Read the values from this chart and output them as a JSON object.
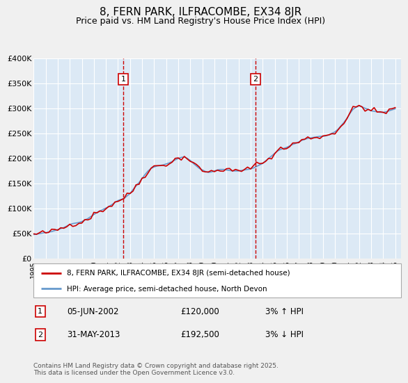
{
  "title": "8, FERN PARK, ILFRACOMBE, EX34 8JR",
  "subtitle": "Price paid vs. HM Land Registry's House Price Index (HPI)",
  "background_color": "#dce9f5",
  "plot_bg_color": "#dce9f5",
  "ylim": [
    0,
    400000
  ],
  "yticks": [
    0,
    50000,
    100000,
    150000,
    200000,
    250000,
    300000,
    350000,
    400000
  ],
  "ytick_labels": [
    "£0",
    "£50K",
    "£100K",
    "£150K",
    "£200K",
    "£250K",
    "£300K",
    "£350K",
    "£400K"
  ],
  "xlim_start": 1995.0,
  "xlim_end": 2025.5,
  "xticks": [
    1995,
    1996,
    1997,
    1998,
    1999,
    2000,
    2001,
    2002,
    2003,
    2004,
    2005,
    2006,
    2007,
    2008,
    2009,
    2010,
    2011,
    2012,
    2013,
    2014,
    2015,
    2016,
    2017,
    2018,
    2019,
    2020,
    2021,
    2022,
    2023,
    2024,
    2025
  ],
  "line1_color": "#cc0000",
  "line2_color": "#6699cc",
  "line1_label": "8, FERN PARK, ILFRACOMBE, EX34 8JR (semi-detached house)",
  "line2_label": "HPI: Average price, semi-detached house, North Devon",
  "vline1_x": 2002.43,
  "vline2_x": 2013.41,
  "vline_color": "#cc0000",
  "marker1_price": 120000,
  "marker2_price": 192500,
  "footer": "Contains HM Land Registry data © Crown copyright and database right 2025.\nThis data is licensed under the Open Government Licence v3.0.",
  "grid_color": "#ffffff",
  "hpi_years": [
    1995.0,
    1995.25,
    1995.5,
    1995.75,
    1996.0,
    1996.25,
    1996.5,
    1996.75,
    1997.0,
    1997.25,
    1997.5,
    1997.75,
    1998.0,
    1998.25,
    1998.5,
    1998.75,
    1999.0,
    1999.25,
    1999.5,
    1999.75,
    2000.0,
    2000.25,
    2000.5,
    2000.75,
    2001.0,
    2001.25,
    2001.5,
    2001.75,
    2002.0,
    2002.25,
    2002.5,
    2002.75,
    2003.0,
    2003.25,
    2003.5,
    2003.75,
    2004.0,
    2004.25,
    2004.5,
    2004.75,
    2005.0,
    2005.25,
    2005.5,
    2005.75,
    2006.0,
    2006.25,
    2006.5,
    2006.75,
    2007.0,
    2007.25,
    2007.5,
    2007.75,
    2008.0,
    2008.25,
    2008.5,
    2008.75,
    2009.0,
    2009.25,
    2009.5,
    2009.75,
    2010.0,
    2010.25,
    2010.5,
    2010.75,
    2011.0,
    2011.25,
    2011.5,
    2011.75,
    2012.0,
    2012.25,
    2012.5,
    2012.75,
    2013.0,
    2013.25,
    2013.5,
    2013.75,
    2014.0,
    2014.25,
    2014.5,
    2014.75,
    2015.0,
    2015.25,
    2015.5,
    2015.75,
    2016.0,
    2016.25,
    2016.5,
    2016.75,
    2017.0,
    2017.25,
    2017.5,
    2017.75,
    2018.0,
    2018.25,
    2018.5,
    2018.75,
    2019.0,
    2019.25,
    2019.5,
    2019.75,
    2020.0,
    2020.25,
    2020.5,
    2020.75,
    2021.0,
    2021.25,
    2021.5,
    2021.75,
    2022.0,
    2022.25,
    2022.5,
    2022.75,
    2023.0,
    2023.25,
    2023.5,
    2023.75,
    2024.0,
    2024.25,
    2024.5,
    2024.75,
    2025.0
  ],
  "hpi_values": [
    48000,
    49000,
    50000,
    51000,
    52000,
    53000,
    54000,
    56000,
    58000,
    60000,
    62000,
    65000,
    68000,
    70000,
    71000,
    72000,
    74000,
    77000,
    80000,
    84000,
    88000,
    92000,
    95000,
    98000,
    101000,
    104000,
    108000,
    112000,
    116000,
    118000,
    120000,
    125000,
    130000,
    138000,
    145000,
    152000,
    160000,
    168000,
    175000,
    180000,
    183000,
    185000,
    186000,
    187000,
    189000,
    191000,
    194000,
    197000,
    200000,
    202000,
    203000,
    200000,
    196000,
    190000,
    185000,
    180000,
    177000,
    174000,
    172000,
    173000,
    175000,
    177000,
    178000,
    178000,
    177000,
    176000,
    175000,
    175000,
    175000,
    176000,
    177000,
    178000,
    179000,
    181000,
    184000,
    187000,
    190000,
    195000,
    200000,
    205000,
    210000,
    215000,
    218000,
    220000,
    222000,
    225000,
    228000,
    230000,
    233000,
    236000,
    238000,
    240000,
    241000,
    242000,
    243000,
    244000,
    244000,
    245000,
    247000,
    250000,
    253000,
    258000,
    265000,
    272000,
    280000,
    290000,
    298000,
    302000,
    305000,
    303000,
    300000,
    298000,
    295000,
    294000,
    293000,
    292000,
    292000,
    293000,
    295000,
    297000,
    299000
  ]
}
